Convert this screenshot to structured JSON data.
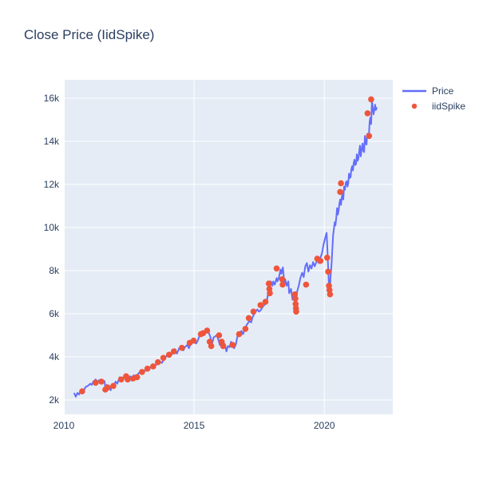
{
  "title": "Close Price (IidSpike)",
  "colors": {
    "line": "#636EFA",
    "spike": "#EF553B",
    "plot_bg": "#E5ECF6",
    "grid": "#FFFFFF",
    "text": "#2a3f5f",
    "paper_bg": "#FFFFFF"
  },
  "legend": {
    "items": [
      {
        "label": "Price",
        "type": "line"
      },
      {
        "label": "iidSpike",
        "type": "marker"
      }
    ]
  },
  "chart_data": {
    "type": "line",
    "title": "Close Price (IidSpike)",
    "xlabel": "",
    "ylabel": "",
    "x_range": [
      2010.03,
      2022.63
    ],
    "y_range": [
      1333,
      16852
    ],
    "x_ticks": {
      "values": [
        2010,
        2015,
        2020
      ],
      "labels": [
        "2010",
        "2015",
        "2020"
      ]
    },
    "y_ticks": {
      "values": [
        2000,
        4000,
        6000,
        8000,
        10000,
        12000,
        14000,
        16000
      ],
      "labels": [
        "2k",
        "4k",
        "6k",
        "8k",
        "10k",
        "12k",
        "14k",
        "16k"
      ]
    },
    "layout": {
      "grid": true,
      "grid_color": "#FFFFFF",
      "legend_position": "outside-top-right"
    },
    "series": [
      {
        "name": "Price",
        "type": "line",
        "color": "#636EFA",
        "x": [
          2010.4,
          2010.46,
          2010.52,
          2010.58,
          2010.64,
          2010.7,
          2010.76,
          2010.83,
          2010.92,
          2011.01,
          2011.07,
          2011.13,
          2011.22,
          2011.28,
          2011.35,
          2011.44,
          2011.5,
          2011.56,
          2011.59,
          2011.65,
          2011.68,
          2011.74,
          2011.8,
          2011.83,
          2011.9,
          2011.99,
          2012.05,
          2012.14,
          2012.2,
          2012.29,
          2012.39,
          2012.45,
          2012.54,
          2012.6,
          2012.69,
          2012.75,
          2012.84,
          2012.97,
          2013.06,
          2013.15,
          2013.27,
          2013.36,
          2013.46,
          2013.58,
          2013.67,
          2013.76,
          2013.88,
          2013.98,
          2014.07,
          2014.19,
          2014.28,
          2014.34,
          2014.43,
          2014.5,
          2014.59,
          2014.65,
          2014.74,
          2014.8,
          2014.89,
          2014.98,
          2015.08,
          2015.14,
          2015.2,
          2015.26,
          2015.35,
          2015.41,
          2015.5,
          2015.57,
          2015.63,
          2015.69,
          2015.75,
          2015.81,
          2015.87,
          2015.93,
          2015.99,
          2016.06,
          2016.12,
          2016.18,
          2016.24,
          2016.3,
          2016.36,
          2016.42,
          2016.48,
          2016.54,
          2016.61,
          2016.67,
          2016.73,
          2016.82,
          2016.88,
          2016.94,
          2017.03,
          2017.12,
          2017.19,
          2017.25,
          2017.34,
          2017.43,
          2017.49,
          2017.55,
          2017.65,
          2017.74,
          2017.8,
          2017.86,
          2017.89,
          2017.95,
          2018.01,
          2018.04,
          2018.1,
          2018.17,
          2018.2,
          2018.26,
          2018.32,
          2018.35,
          2018.41,
          2018.47,
          2018.5,
          2018.56,
          2018.62,
          2018.65,
          2018.72,
          2018.78,
          2018.81,
          2018.87,
          2018.9,
          2018.96,
          2019.02,
          2019.08,
          2019.15,
          2019.21,
          2019.27,
          2019.33,
          2019.39,
          2019.45,
          2019.51,
          2019.57,
          2019.63,
          2019.73,
          2019.79,
          2019.85,
          2019.91,
          2019.97,
          2020.03,
          2020.09,
          2020.12,
          2020.15,
          2020.18,
          2020.21,
          2020.24,
          2020.28,
          2020.31,
          2020.34,
          2020.37,
          2020.4,
          2020.43,
          2020.46,
          2020.49,
          2020.52,
          2020.55,
          2020.58,
          2020.61,
          2020.64,
          2020.67,
          2020.7,
          2020.73,
          2020.76,
          2020.79,
          2020.83,
          2020.86,
          2020.89,
          2020.92,
          2020.95,
          2020.98,
          2021.01,
          2021.04,
          2021.07,
          2021.1,
          2021.13,
          2021.16,
          2021.19,
          2021.22,
          2021.25,
          2021.28,
          2021.31,
          2021.34,
          2021.37,
          2021.4,
          2021.43,
          2021.47,
          2021.5,
          2021.53,
          2021.56,
          2021.59,
          2021.62,
          2021.65,
          2021.68,
          2021.71,
          2021.74,
          2021.77,
          2021.8,
          2021.83,
          2021.86,
          2021.89,
          2021.92,
          2021.95,
          2021.98,
          2022.01
        ],
        "y": [
          2300,
          2150,
          2330,
          2250,
          2400,
          2480,
          2430,
          2600,
          2650,
          2750,
          2700,
          2850,
          2950,
          2850,
          2920,
          2900,
          2800,
          2880,
          2550,
          2700,
          2450,
          2550,
          2450,
          2700,
          2620,
          2850,
          2750,
          3050,
          2900,
          3050,
          3150,
          2950,
          3100,
          2900,
          3150,
          2980,
          3200,
          3350,
          3250,
          3450,
          3400,
          3600,
          3500,
          3700,
          3800,
          3720,
          3950,
          4100,
          4000,
          4200,
          4350,
          4150,
          4400,
          4500,
          4300,
          4450,
          4550,
          4400,
          4650,
          4700,
          4620,
          4750,
          4950,
          5050,
          5000,
          5150,
          5200,
          5100,
          4900,
          4600,
          4900,
          4950,
          5000,
          4800,
          4550,
          4750,
          4400,
          4600,
          4250,
          4500,
          4450,
          4700,
          4550,
          4400,
          4600,
          5000,
          5100,
          5200,
          5050,
          5250,
          5500,
          5650,
          5600,
          5850,
          6050,
          6200,
          6100,
          6150,
          6350,
          6450,
          6600,
          7100,
          6950,
          7500,
          7300,
          7500,
          7350,
          7650,
          7500,
          7700,
          8050,
          7850,
          8150,
          7400,
          7600,
          7300,
          7500,
          6950,
          7150,
          6650,
          6850,
          6550,
          6450,
          7050,
          7300,
          7650,
          7900,
          7700,
          8200,
          8350,
          7950,
          8250,
          8100,
          8400,
          8200,
          8500,
          8350,
          8600,
          8800,
          9200,
          9500,
          9750,
          9000,
          8100,
          7300,
          6900,
          7700,
          8300,
          9000,
          9650,
          9950,
          10250,
          10100,
          10450,
          10900,
          10600,
          10800,
          11100,
          11300,
          11050,
          11400,
          11550,
          11300,
          11900,
          11750,
          12100,
          12150,
          11900,
          12050,
          12500,
          12300,
          12350,
          12700,
          12850,
          12650,
          13000,
          13150,
          12900,
          12950,
          13400,
          13100,
          13200,
          13500,
          13800,
          13300,
          13600,
          13900,
          13550,
          13500,
          14250,
          13900,
          13850,
          14350,
          14300,
          14200,
          14900,
          15100,
          14800,
          15900,
          15550,
          15250,
          15450,
          15700,
          15450,
          15550
        ]
      },
      {
        "name": "iidSpike",
        "type": "scatter",
        "color": "#EF553B",
        "marker_size": 7.6,
        "x": [
          2010.7,
          2011.22,
          2011.44,
          2011.59,
          2011.68,
          2011.9,
          2012.2,
          2012.39,
          2012.45,
          2012.66,
          2012.81,
          2013.0,
          2013.21,
          2013.43,
          2013.61,
          2013.82,
          2014.04,
          2014.22,
          2014.53,
          2014.83,
          2014.98,
          2015.26,
          2015.35,
          2015.5,
          2015.6,
          2015.66,
          2015.96,
          2016.06,
          2016.12,
          2016.48,
          2016.73,
          2016.97,
          2017.1,
          2017.28,
          2017.55,
          2017.74,
          2017.87,
          2017.89,
          2017.91,
          2018.17,
          2018.38,
          2018.4,
          2018.87,
          2018.89,
          2018.9,
          2018.91,
          2018.92,
          2019.3,
          2019.73,
          2019.85,
          2020.11,
          2020.15,
          2020.18,
          2020.2,
          2020.22,
          2020.61,
          2020.64,
          2021.66,
          2021.72,
          2021.8
        ],
        "y": [
          2400,
          2800,
          2850,
          2480,
          2580,
          2650,
          2950,
          3100,
          2950,
          3000,
          3060,
          3300,
          3450,
          3560,
          3750,
          3950,
          4100,
          4250,
          4420,
          4650,
          4750,
          5050,
          5100,
          5220,
          4700,
          4500,
          5000,
          4700,
          4500,
          4550,
          5050,
          5300,
          5800,
          6100,
          6400,
          6550,
          7400,
          7150,
          6950,
          8100,
          7600,
          7350,
          6900,
          6700,
          6450,
          6250,
          6100,
          7350,
          8550,
          8450,
          8600,
          7950,
          7300,
          7100,
          6900,
          11650,
          12050,
          15300,
          14250,
          15950
        ]
      }
    ]
  }
}
